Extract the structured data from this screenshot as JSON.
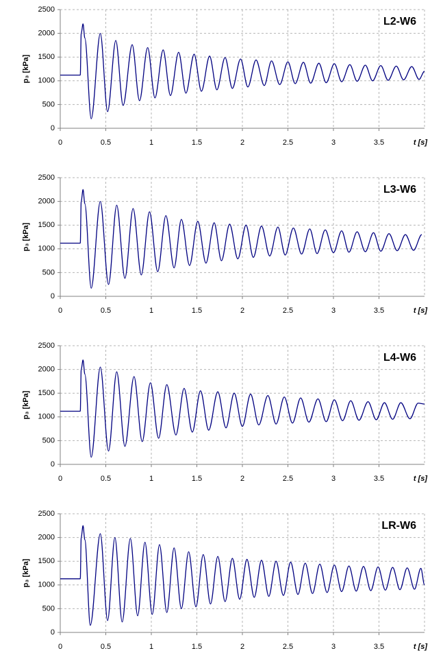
{
  "chart_data": [
    {
      "type": "line",
      "title": "L2-W6",
      "xlabel": "t [s]",
      "ylabel": "p₃ [kPa]",
      "color": "#000080",
      "x": [
        0,
        0.22,
        0.23,
        0.25,
        0.27,
        0.34,
        0.44,
        0.52,
        0.61,
        0.69,
        0.79,
        0.87,
        0.96,
        1.04,
        1.13,
        1.21,
        1.3,
        1.38,
        1.47,
        1.55,
        1.64,
        1.72,
        1.81,
        1.89,
        1.98,
        2.06,
        2.15,
        2.24,
        2.32,
        2.41,
        2.5,
        2.58,
        2.67,
        2.75,
        2.84,
        2.92,
        3.01,
        3.09,
        3.18,
        3.26,
        3.35,
        3.43,
        3.52,
        3.6,
        3.69,
        3.77,
        3.86,
        3.94,
        4.0
      ],
      "values": [
        1120,
        1120,
        2000,
        2200,
        1900,
        200,
        2000,
        350,
        1850,
        480,
        1760,
        580,
        1700,
        640,
        1650,
        690,
        1600,
        740,
        1560,
        780,
        1520,
        810,
        1490,
        840,
        1460,
        870,
        1440,
        900,
        1420,
        920,
        1400,
        940,
        1390,
        950,
        1370,
        960,
        1360,
        980,
        1340,
        990,
        1330,
        1000,
        1320,
        1010,
        1310,
        1020,
        1300,
        1030,
        1200
      ],
      "xlim": [
        0,
        4
      ],
      "xticks": [
        0,
        0.5,
        1,
        1.5,
        2,
        2.5,
        3,
        3.5
      ],
      "ylim": [
        0,
        2500
      ],
      "yticks": [
        0,
        500,
        1000,
        1500,
        2000,
        2500
      ],
      "grid": true
    },
    {
      "type": "line",
      "title": "L3-W6",
      "xlabel": "t [s]",
      "ylabel": "p₃ [kPa]",
      "color": "#000080",
      "x": [
        0,
        0.22,
        0.23,
        0.25,
        0.27,
        0.34,
        0.44,
        0.53,
        0.62,
        0.71,
        0.8,
        0.89,
        0.98,
        1.07,
        1.16,
        1.25,
        1.33,
        1.42,
        1.51,
        1.6,
        1.69,
        1.77,
        1.86,
        1.95,
        2.04,
        2.12,
        2.21,
        2.3,
        2.39,
        2.47,
        2.56,
        2.65,
        2.74,
        2.82,
        2.91,
        3.0,
        3.09,
        3.17,
        3.26,
        3.35,
        3.44,
        3.52,
        3.61,
        3.7,
        3.79,
        3.88,
        3.97
      ],
      "values": [
        1120,
        1120,
        2000,
        2250,
        1950,
        170,
        2000,
        250,
        1920,
        380,
        1850,
        450,
        1780,
        520,
        1700,
        600,
        1620,
        650,
        1580,
        700,
        1550,
        750,
        1520,
        790,
        1500,
        820,
        1480,
        850,
        1460,
        870,
        1440,
        890,
        1420,
        900,
        1400,
        920,
        1380,
        930,
        1360,
        940,
        1340,
        950,
        1320,
        960,
        1300,
        970,
        1300
      ],
      "xlim": [
        0,
        4
      ],
      "xticks": [
        0,
        0.5,
        1,
        1.5,
        2,
        2.5,
        3,
        3.5
      ],
      "ylim": [
        0,
        2500
      ],
      "yticks": [
        0,
        500,
        1000,
        1500,
        2000,
        2500
      ],
      "grid": true
    },
    {
      "type": "line",
      "title": "L4-W6",
      "xlabel": "t [s]",
      "ylabel": "p₃ [kPa]",
      "color": "#000080",
      "x": [
        0,
        0.22,
        0.23,
        0.25,
        0.27,
        0.34,
        0.44,
        0.53,
        0.62,
        0.71,
        0.81,
        0.9,
        0.99,
        1.08,
        1.17,
        1.27,
        1.36,
        1.45,
        1.54,
        1.63,
        1.73,
        1.82,
        1.91,
        2.0,
        2.09,
        2.18,
        2.28,
        2.37,
        2.46,
        2.55,
        2.64,
        2.73,
        2.83,
        2.92,
        3.01,
        3.1,
        3.19,
        3.28,
        3.38,
        3.47,
        3.56,
        3.65,
        3.74,
        3.84,
        3.93,
        4.0
      ],
      "values": [
        1120,
        1120,
        2000,
        2200,
        1900,
        150,
        2050,
        280,
        1950,
        380,
        1850,
        480,
        1720,
        550,
        1680,
        620,
        1600,
        680,
        1550,
        720,
        1530,
        770,
        1500,
        800,
        1480,
        830,
        1450,
        850,
        1420,
        870,
        1400,
        890,
        1380,
        900,
        1360,
        920,
        1340,
        930,
        1320,
        940,
        1300,
        950,
        1300,
        960,
        1290,
        1270
      ],
      "xlim": [
        0,
        4
      ],
      "xticks": [
        0,
        0.5,
        1,
        1.5,
        2,
        2.5,
        3,
        3.5
      ],
      "ylim": [
        0,
        2500
      ],
      "yticks": [
        0,
        500,
        1000,
        1500,
        2000,
        2500
      ],
      "grid": true
    },
    {
      "type": "line",
      "title": "LR-W6",
      "xlabel": "t [s]",
      "ylabel": "p₃ [kPa]",
      "color": "#000080",
      "x": [
        0,
        0.22,
        0.23,
        0.25,
        0.27,
        0.33,
        0.44,
        0.52,
        0.6,
        0.68,
        0.77,
        0.85,
        0.93,
        1.01,
        1.09,
        1.17,
        1.25,
        1.33,
        1.41,
        1.49,
        1.57,
        1.65,
        1.73,
        1.81,
        1.89,
        1.97,
        2.05,
        2.13,
        2.21,
        2.29,
        2.37,
        2.45,
        2.53,
        2.61,
        2.69,
        2.77,
        2.85,
        2.93,
        3.01,
        3.09,
        3.17,
        3.25,
        3.33,
        3.41,
        3.49,
        3.57,
        3.65,
        3.73,
        3.81,
        3.89,
        3.96,
        4.0
      ],
      "values": [
        1130,
        1130,
        2000,
        2250,
        1950,
        150,
        2080,
        250,
        2000,
        220,
        1980,
        350,
        1900,
        380,
        1850,
        420,
        1780,
        500,
        1700,
        540,
        1640,
        600,
        1600,
        650,
        1560,
        700,
        1540,
        740,
        1520,
        760,
        1500,
        780,
        1480,
        800,
        1460,
        820,
        1440,
        840,
        1420,
        860,
        1400,
        870,
        1390,
        880,
        1380,
        890,
        1370,
        900,
        1360,
        910,
        1350,
        1000
      ],
      "xlim": [
        0,
        4
      ],
      "xticks": [
        0,
        0.5,
        1,
        1.5,
        2,
        2.5,
        3,
        3.5
      ],
      "ylim": [
        0,
        2500
      ],
      "yticks": [
        0,
        500,
        1000,
        1500,
        2000,
        2500
      ],
      "grid": true
    }
  ]
}
